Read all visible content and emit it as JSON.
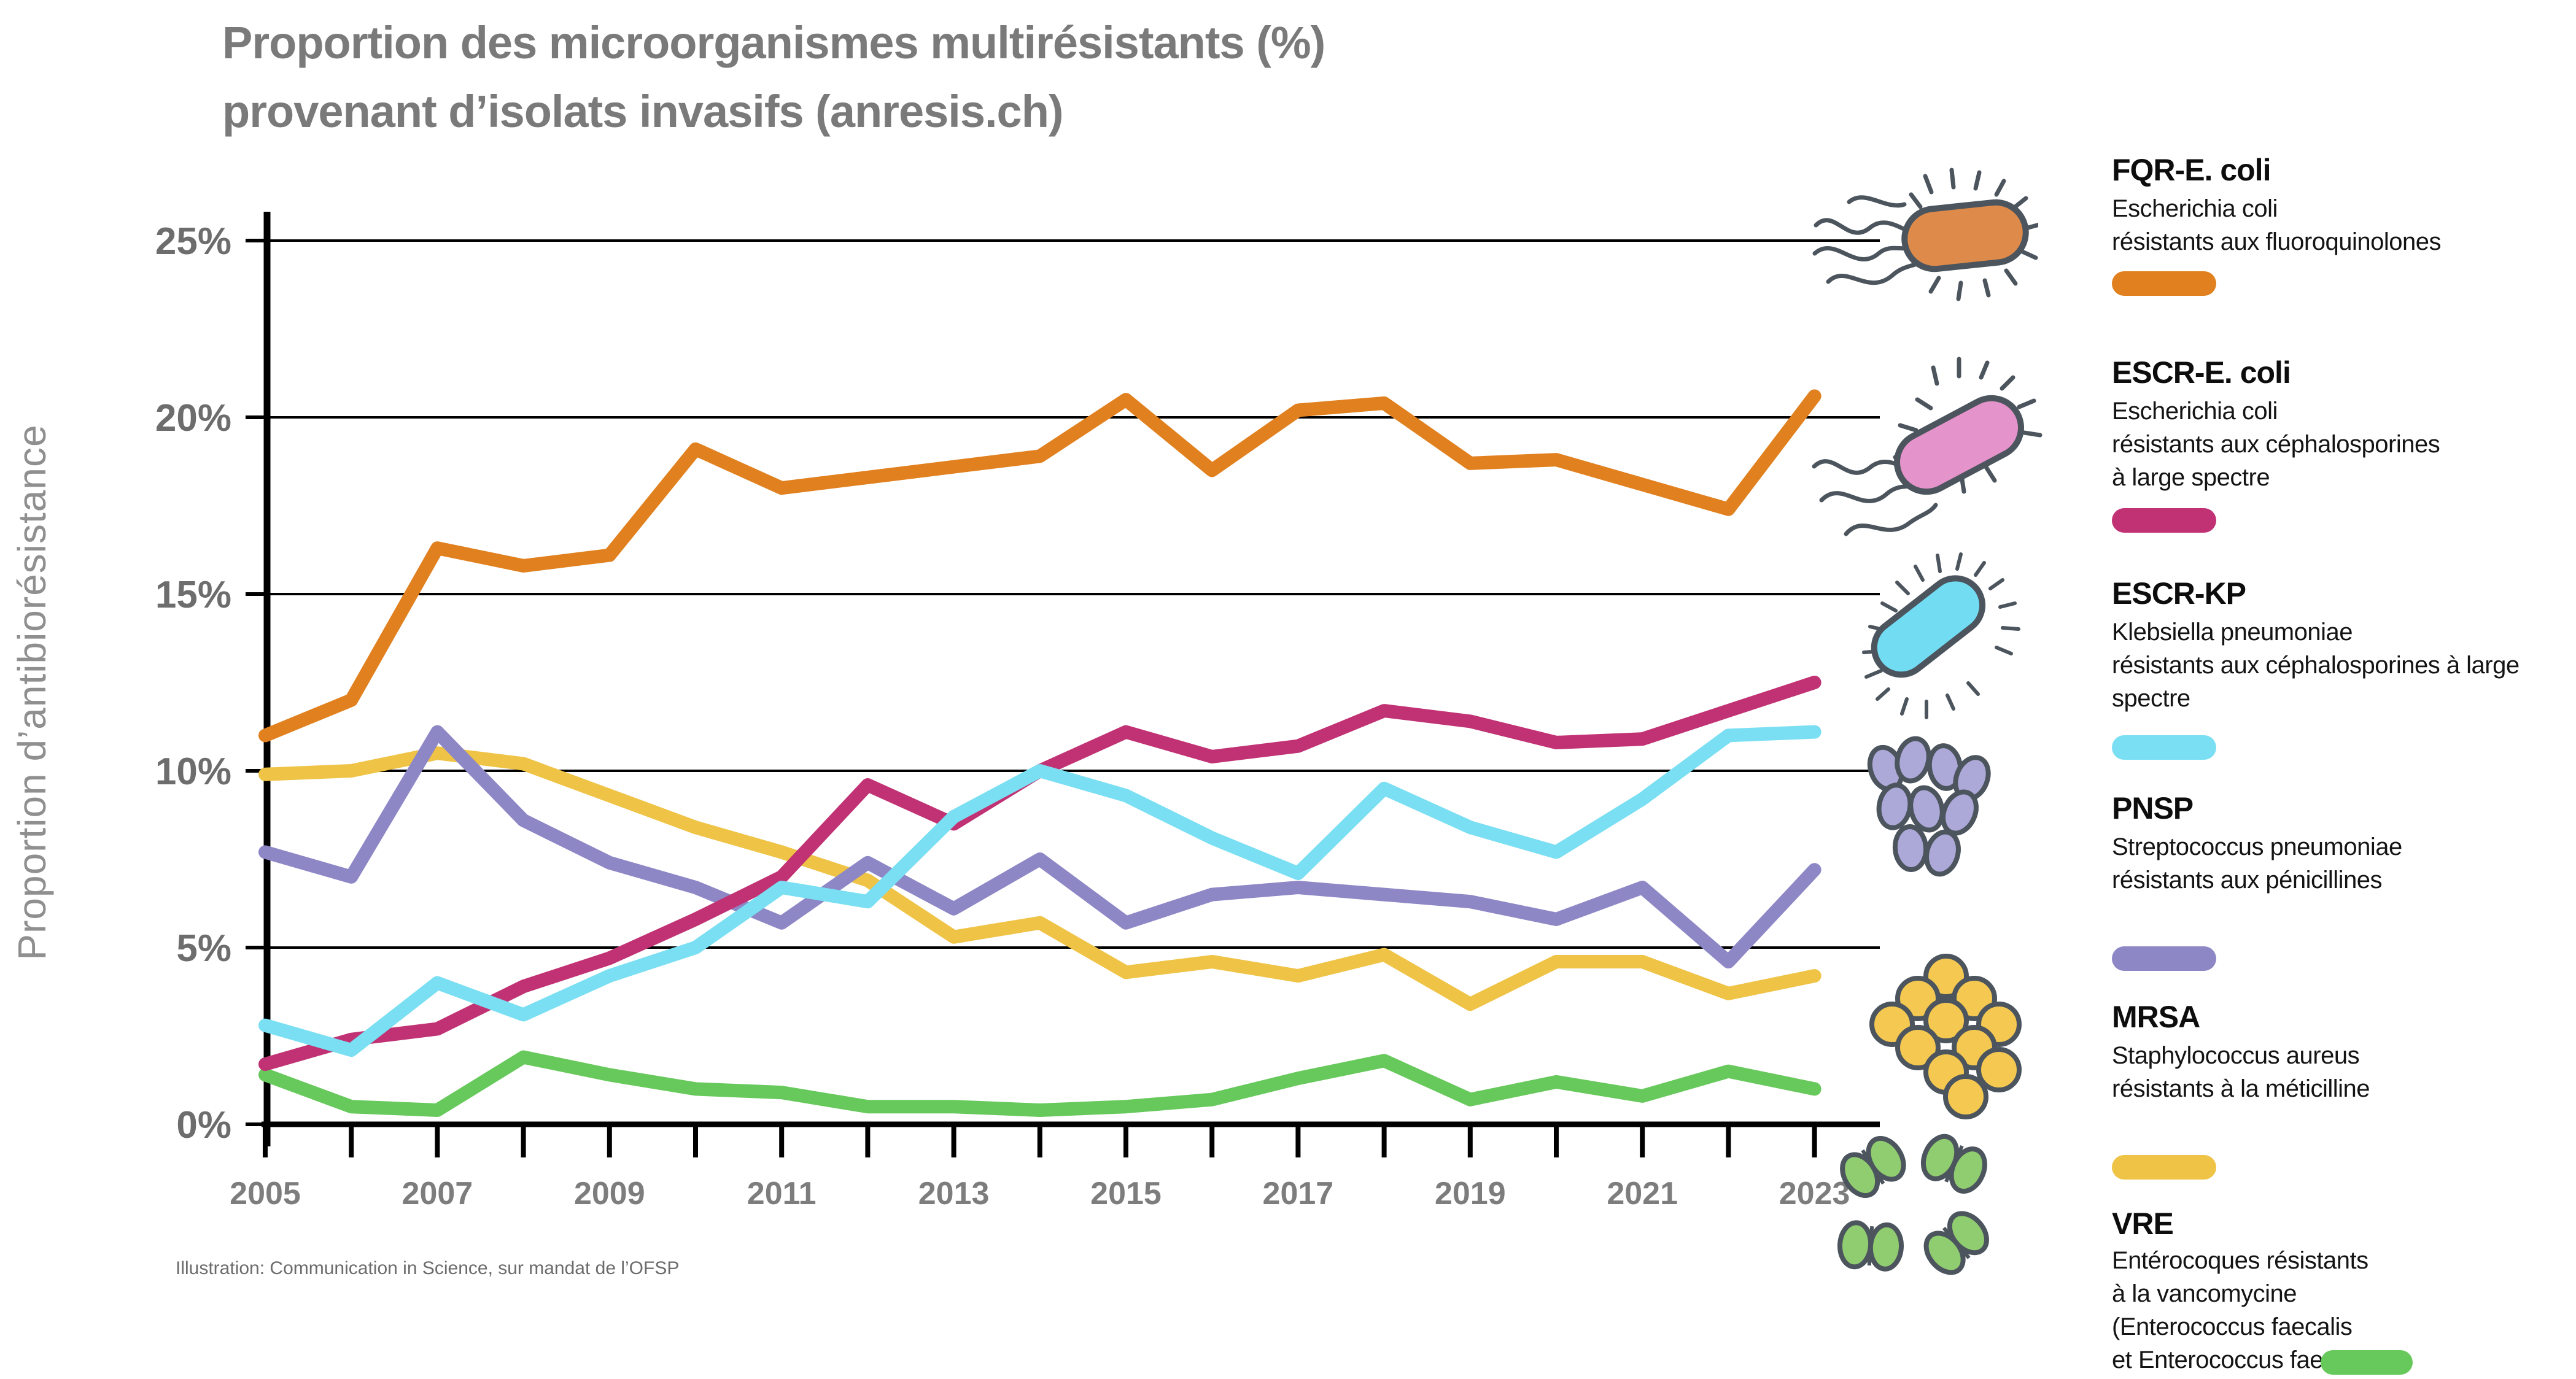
{
  "title": {
    "line1": "Proportion des microorganismes multirésistants (%)",
    "line2": "provenant d’isolats invasifs (anresis.ch)"
  },
  "footnote": "Illustration: Communication in Science, sur mandat de l’OFSP",
  "chart_data": {
    "type": "line",
    "title": "Proportion des microorganismes multirésistants (%) provenant d’isolats invasifs (anresis.ch)",
    "ylabel": "Proportion d’antibiorésistance",
    "xlabel": "",
    "ylim": [
      0,
      25
    ],
    "grid": "horizontal-5pct",
    "legend_position": "right",
    "x": [
      2005,
      2006,
      2007,
      2008,
      2009,
      2010,
      2011,
      2012,
      2013,
      2014,
      2015,
      2016,
      2017,
      2018,
      2019,
      2020,
      2021,
      2022,
      2023
    ],
    "x_tick_labels": [
      "2005",
      "2007",
      "2009",
      "2011",
      "2013",
      "2015",
      "2017",
      "2019",
      "2021",
      "2023"
    ],
    "y_ticks": [
      {
        "value": 25,
        "label": "25%"
      },
      {
        "value": 20,
        "label": "20%"
      },
      {
        "value": 15,
        "label": "15%"
      },
      {
        "value": 10,
        "label": "10%"
      },
      {
        "value": 5,
        "label": "5%"
      },
      {
        "value": 0,
        "label": "0%"
      }
    ],
    "series": [
      {
        "id": "fqr-e-coli",
        "name": "FQR-E. coli",
        "color": "#E1801E",
        "values": [
          11.0,
          12.0,
          16.3,
          15.8,
          16.1,
          19.1,
          18.0,
          18.3,
          18.6,
          18.9,
          20.5,
          18.5,
          20.2,
          20.4,
          18.7,
          18.8,
          18.1,
          17.4,
          20.6
        ]
      },
      {
        "id": "escr-e-coli",
        "name": "ESCR-E. coli",
        "color": "#C13274",
        "values": [
          1.7,
          2.4,
          2.7,
          3.9,
          4.7,
          5.8,
          7.0,
          9.6,
          8.5,
          10.0,
          11.1,
          10.4,
          10.7,
          11.7,
          11.4,
          10.8,
          10.9,
          11.7,
          12.5
        ]
      },
      {
        "id": "escr-kp",
        "name": "ESCR-KP",
        "color": "#7ADFF2",
        "values": [
          2.8,
          2.1,
          4.0,
          3.1,
          4.2,
          5.0,
          6.7,
          6.3,
          8.7,
          10.0,
          9.3,
          8.1,
          7.1,
          9.5,
          8.4,
          7.7,
          9.2,
          11.0,
          11.1
        ]
      },
      {
        "id": "pnsp",
        "name": "PNSP",
        "color": "#8D87C6",
        "values": [
          7.7,
          7.0,
          11.1,
          8.6,
          7.4,
          6.7,
          5.7,
          7.4,
          6.1,
          7.5,
          5.7,
          6.5,
          6.7,
          6.5,
          6.3,
          5.8,
          6.7,
          4.6,
          7.2
        ]
      },
      {
        "id": "mrsa",
        "name": "MRSA",
        "color": "#EFC345",
        "values": [
          9.9,
          10.0,
          10.5,
          10.2,
          9.3,
          8.4,
          7.7,
          6.9,
          5.3,
          5.7,
          4.3,
          4.6,
          4.2,
          4.8,
          3.4,
          4.6,
          4.6,
          3.7,
          4.2
        ]
      },
      {
        "id": "vre",
        "name": "VRE",
        "color": "#67C95B",
        "values": [
          1.4,
          0.5,
          0.4,
          1.9,
          1.4,
          1.0,
          0.9,
          0.5,
          0.5,
          0.4,
          0.5,
          0.7,
          1.3,
          1.8,
          0.7,
          1.2,
          0.8,
          1.5,
          1.0
        ]
      }
    ],
    "z_order": [
      "vre",
      "mrsa",
      "pnsp",
      "escr-e-coli",
      "escr-kp",
      "fqr-e-coli"
    ]
  },
  "legend": {
    "entries": [
      {
        "key": "FQR-E. coli",
        "color": "#E1801E",
        "icon": "e-coli-orange",
        "desc_lines": [
          "Escherichia coli",
          "résistants aux fluoroquinolones"
        ]
      },
      {
        "key": "ESCR-E. coli",
        "color": "#C13274",
        "icon": "e-coli-pink",
        "desc_lines": [
          "Escherichia coli",
          "résistants aux céphalosporines",
          "à large spectre"
        ]
      },
      {
        "key": "ESCR-KP",
        "color": "#7ADFF2",
        "icon": "klebsiella",
        "desc_lines": [
          "Klebsiella pneumoniae",
          "résistants aux céphalosporines à large",
          "spectre"
        ]
      },
      {
        "key": "PNSP",
        "color": "#8D87C6",
        "icon": "streptococcus",
        "desc_lines": [
          "Streptococcus pneumoniae",
          "résistants aux pénicillines"
        ]
      },
      {
        "key": "MRSA",
        "color": "#EFC345",
        "icon": "staphylococcus",
        "desc_lines": [
          "Staphylococcus aureus",
          "résistants à la méticilline"
        ]
      },
      {
        "key": "VRE",
        "color": "#67C95B",
        "icon": "enterococcus",
        "desc_lines": [
          "Entérocoques résistants",
          "à la vancomycine",
          "(Enterococcus faecalis",
          "et Enterococcus faecium)"
        ]
      }
    ]
  }
}
